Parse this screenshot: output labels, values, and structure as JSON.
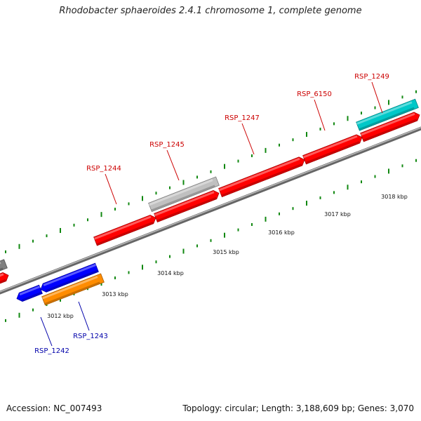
{
  "title": "Rhodobacter sphaeroides 2.4.1 chromosome 1, complete genome",
  "footer": {
    "accession": "Accession: NC_007493",
    "summary": "Topology: circular; Length: 3,188,609 bp; Genes: 3,070"
  },
  "colors": {
    "forward_gene": "#ff0000",
    "reverse_gene": "#0000ff",
    "unknown_gene": "#c0c0c0",
    "cyan_gene": "#00c8c8",
    "orange_gene": "#ff8c00",
    "dark_gene": "#808080",
    "forward_label": "#cc0000",
    "reverse_label": "#0000aa",
    "tick": "#118811",
    "backbone": "#888888"
  },
  "scale_ticks": [
    {
      "label": "3012 kbp"
    },
    {
      "label": "3013 kbp"
    },
    {
      "label": "3014 kbp"
    },
    {
      "label": "3015 kbp"
    },
    {
      "label": "3016 kbp"
    },
    {
      "label": "3017 kbp"
    },
    {
      "label": "3018 kbp"
    }
  ],
  "gene_labels": [
    {
      "name": "RSP_1244",
      "strand": "forward"
    },
    {
      "name": "RSP_1245",
      "strand": "forward"
    },
    {
      "name": "RSP_1247",
      "strand": "forward"
    },
    {
      "name": "RSP_6150",
      "strand": "forward"
    },
    {
      "name": "RSP_1249",
      "strand": "forward"
    },
    {
      "name": "RSP_1242",
      "strand": "reverse"
    },
    {
      "name": "RSP_1243",
      "strand": "reverse"
    }
  ]
}
